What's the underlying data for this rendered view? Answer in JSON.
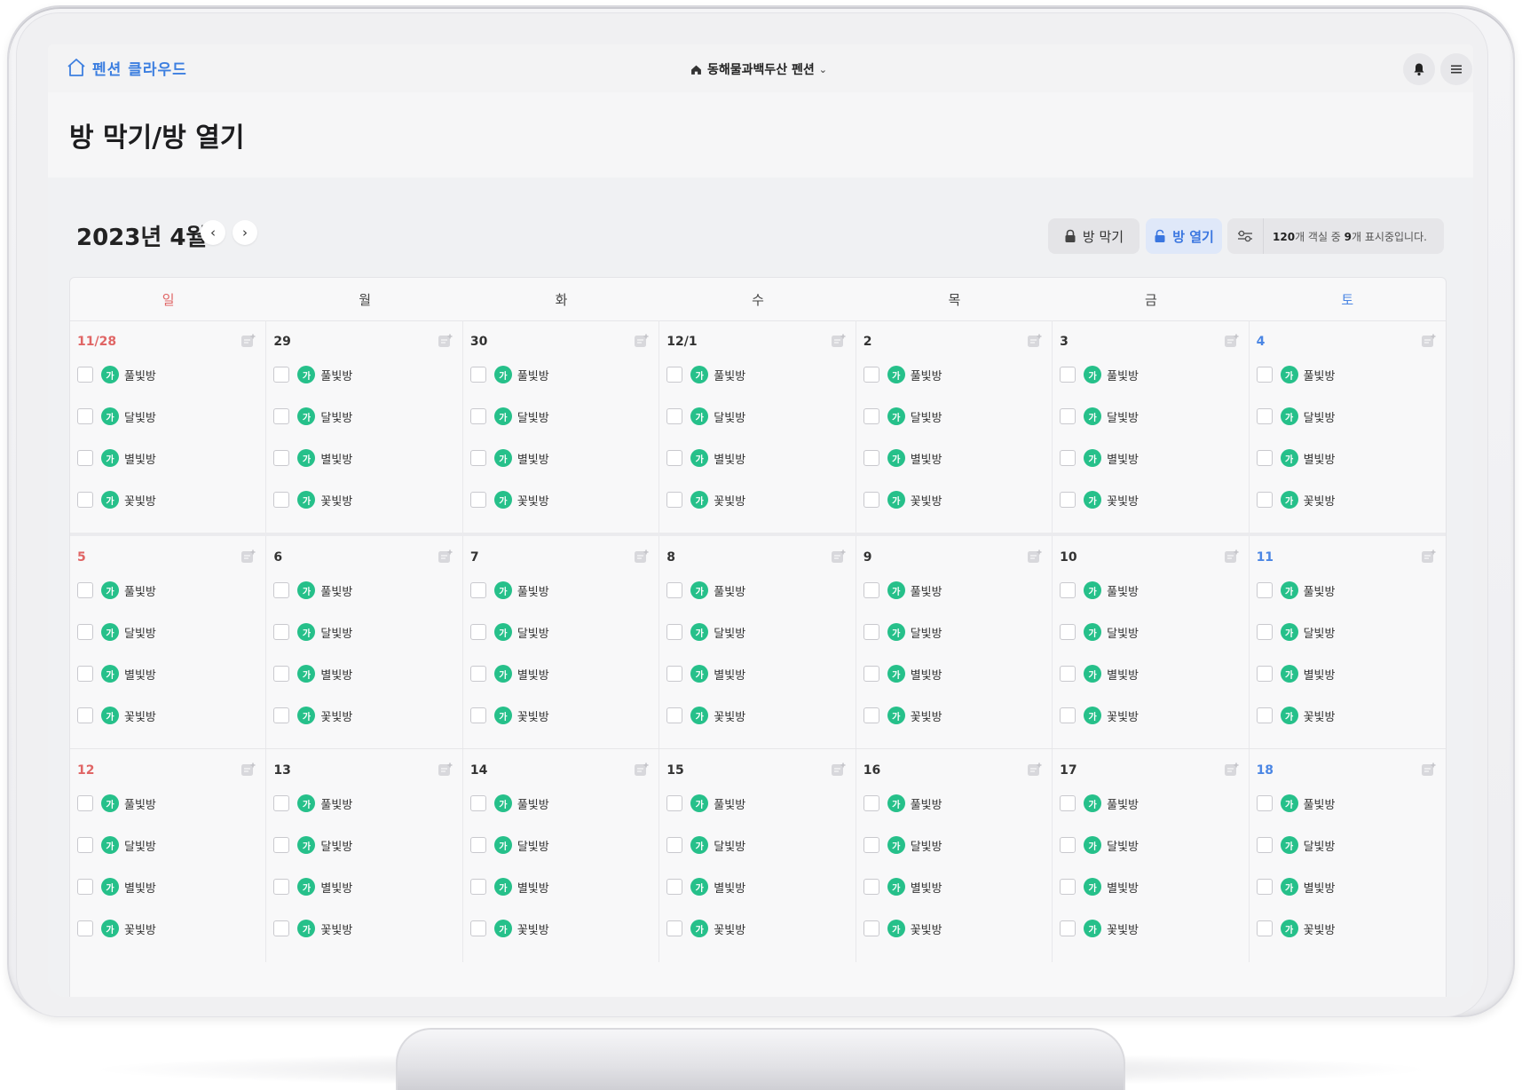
{
  "app": {
    "brand": "펜션 클라우드",
    "property_name": "동해물과백두산 펜션",
    "page_title": "방 막기/방 열기"
  },
  "calendar": {
    "month_label": "2023년 4월",
    "actions": {
      "close_label": "방 막기",
      "open_label": "방 열기"
    },
    "filter_text_prefix": "120",
    "filter_text_mid": "개 객실 중 ",
    "filter_text_count": "9",
    "filter_text_suffix": "개 표시중입니다.",
    "weekdays": [
      "일",
      "월",
      "화",
      "수",
      "목",
      "금",
      "토"
    ],
    "room_badge": "가",
    "rooms": [
      "풀빛방",
      "달빛방",
      "별빛방",
      "꽃빛방"
    ],
    "weeks": [
      [
        "11/28",
        "29",
        "30",
        "12/1",
        "2",
        "3",
        "4"
      ],
      [
        "5",
        "6",
        "7",
        "8",
        "9",
        "10",
        "11"
      ],
      [
        "12",
        "13",
        "14",
        "15",
        "16",
        "17",
        "18"
      ]
    ],
    "colors": {
      "sunday": "#e06565",
      "saturday": "#4b86e4",
      "badge": "#26c08a",
      "accent": "#3a76e0"
    }
  }
}
